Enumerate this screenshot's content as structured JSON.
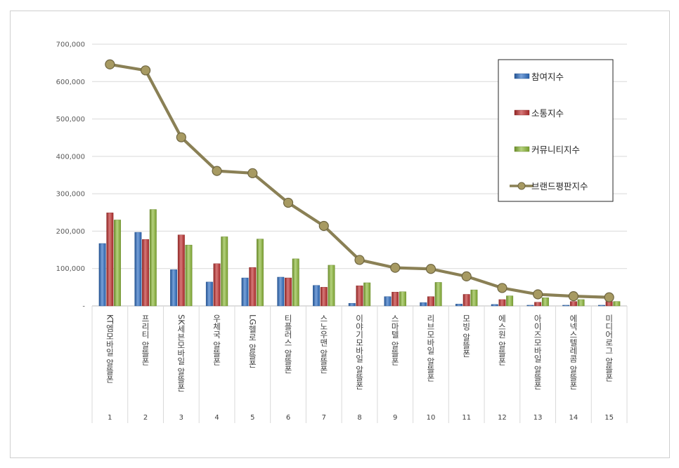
{
  "chart_data": {
    "type": "bar",
    "categories": [
      "KT엠모바일 알뜰폰",
      "프리티 알뜰폰",
      "SK세븐모바일 알뜰폰",
      "우체국 알뜰폰",
      "LG헬로 알뜰폰",
      "티플러스 알뜰폰",
      "스노우맨 알뜰폰",
      "이야기모바일 알뜰폰",
      "스마텔 알뜰폰",
      "리브모바일 알뜰폰",
      "모빙 알뜰폰",
      "에스원 알뜰폰",
      "아이즈모바일 알뜰폰",
      "에넥스텔레콤 알뜰폰",
      "미디어로그 알뜰폰"
    ],
    "ranks": [
      "1",
      "2",
      "3",
      "4",
      "5",
      "6",
      "7",
      "8",
      "9",
      "10",
      "11",
      "12",
      "13",
      "14",
      "15"
    ],
    "series": [
      {
        "name": "참여지수",
        "kind": "bar",
        "color": "#2e6fc4",
        "values": [
          167000,
          197000,
          97000,
          64000,
          75000,
          77000,
          55000,
          7000,
          25000,
          9000,
          5000,
          4000,
          2000,
          2000,
          2000
        ]
      },
      {
        "name": "소통지수",
        "kind": "bar",
        "color": "#c0302f",
        "values": [
          249000,
          178000,
          190000,
          113000,
          103000,
          75000,
          50000,
          54000,
          37000,
          25000,
          31000,
          17000,
          10000,
          12000,
          12000
        ]
      },
      {
        "name": "커뮤니티지수",
        "kind": "bar",
        "color": "#8dba38",
        "values": [
          230000,
          258000,
          163000,
          185000,
          179000,
          126000,
          109000,
          62000,
          38000,
          63000,
          43000,
          27000,
          22000,
          17000,
          12000
        ]
      },
      {
        "name": "브랜드평판지수",
        "kind": "line",
        "color": "#8a8055",
        "values": [
          646000,
          630000,
          451000,
          361000,
          355000,
          276000,
          214000,
          123000,
          102000,
          99000,
          79000,
          48000,
          31000,
          26000,
          23000
        ]
      }
    ],
    "ylim": [
      0,
      700000
    ],
    "yticks": [
      "-",
      "100,000",
      "200,000",
      "300,000",
      "400,000",
      "500,000",
      "600,000",
      "700,000"
    ],
    "grid": true,
    "legend_position": "top-right"
  }
}
